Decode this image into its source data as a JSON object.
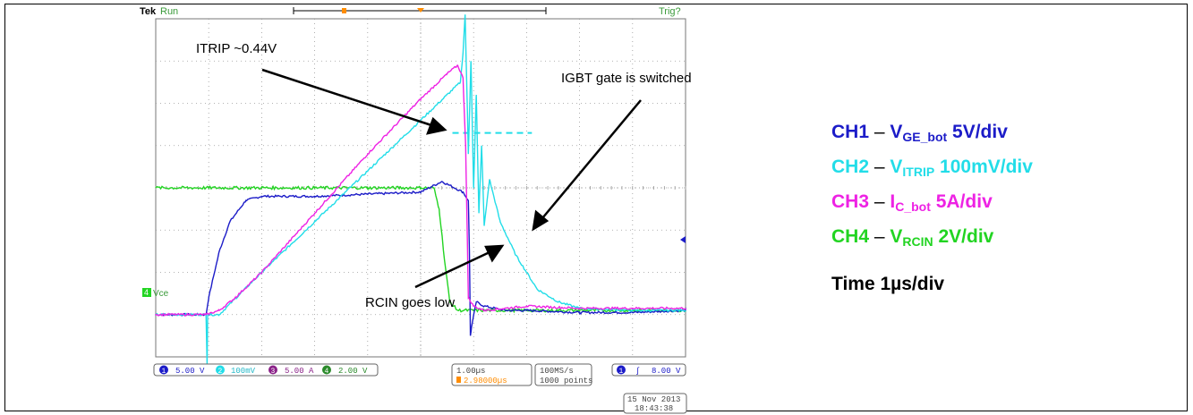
{
  "scope": {
    "brand": "Tek",
    "run_state": "Run",
    "trigger_state": "Trig?",
    "ch4_marker": "4",
    "ch4_ground_label": "Vce",
    "date": "15 Nov 2013",
    "time": "18:43:38",
    "status_bar": {
      "ch1_num": "1",
      "ch1_scale": "5.00 V",
      "ch2_num": "2",
      "ch2_scale": "100mV",
      "ch3_num": "3",
      "ch3_scale": "5.00 A",
      "ch4_num": "4",
      "ch4_scale": "2.00 V",
      "timebase": "1.00µs",
      "trigger_pos": "2.98000µs",
      "sample_rate": "100MS/s",
      "record_length": "1000 points",
      "trig_src": "1",
      "trig_slope": "∫",
      "trig_level": "8.00 V"
    }
  },
  "annotations": {
    "itrip": "ITRIP ~0.44V",
    "igbt": "IGBT gate is switched",
    "rcin": "RCIN goes low"
  },
  "legend": {
    "ch1": {
      "name": "CH1",
      "dash": "–",
      "sym": "V",
      "sub": "GE_bot",
      "scale": "5V/div"
    },
    "ch2": {
      "name": "CH2",
      "dash": "–",
      "sym": "V",
      "sub": "ITRIP",
      "scale": "100mV/div"
    },
    "ch3": {
      "name": "CH3",
      "dash": "–",
      "sym": "I",
      "sub": "C_bot",
      "scale": "5A/div"
    },
    "ch4": {
      "name": "CH4",
      "dash": "–",
      "sym": "V",
      "sub": "RCIN",
      "scale": "2V/div"
    }
  },
  "time_label": "Time 1µs/div",
  "colors": {
    "ch1": "#1c1cc8",
    "ch2": "#22dde8",
    "ch3": "#ee22e4",
    "ch4": "#22d422",
    "trigger_marker": "#ff8c00",
    "grid": "#9a9a9a"
  },
  "chart_data": {
    "type": "line",
    "x_unit": "div",
    "y_unit": "div",
    "xlim": [
      0,
      10
    ],
    "ylim": [
      -4,
      4
    ],
    "grid": true,
    "series": [
      {
        "name": "CH1",
        "x": [
          0,
          0.95,
          1.0,
          1.2,
          1.4,
          1.7,
          2.0,
          3.0,
          4.0,
          5.0,
          5.4,
          5.8,
          5.9,
          5.92,
          5.94,
          5.96,
          6.05,
          6.2,
          6.6,
          7.0,
          8.0,
          9.0,
          10.0
        ],
        "y": [
          -3.0,
          -3.0,
          -2.6,
          -1.5,
          -0.8,
          -0.3,
          -0.2,
          -0.2,
          -0.15,
          -0.1,
          0.15,
          -0.1,
          -0.3,
          -1.5,
          -3.5,
          -3.3,
          -2.7,
          -2.8,
          -2.9,
          -2.9,
          -2.95,
          -2.95,
          -2.9
        ]
      },
      {
        "name": "CH2",
        "x": [
          0,
          0.95,
          0.97,
          0.98,
          1.05,
          1.2,
          2.0,
          3.0,
          4.0,
          5.0,
          5.75,
          5.8,
          5.84,
          5.9,
          5.95,
          6.0,
          6.05,
          6.1,
          6.15,
          6.2,
          6.3,
          6.5,
          6.8,
          7.2,
          7.6,
          8.0,
          9.0,
          10.0
        ],
        "y": [
          -3.0,
          -3.0,
          -4.2,
          -3.0,
          -3.0,
          -3.0,
          -2.0,
          -0.8,
          0.4,
          1.6,
          2.5,
          3.2,
          4.1,
          0.8,
          3.0,
          0.0,
          2.2,
          -0.6,
          1.0,
          -0.9,
          0.2,
          -0.8,
          -1.6,
          -2.4,
          -2.7,
          -2.85,
          -2.9,
          -2.9
        ]
      },
      {
        "name": "CH3",
        "x": [
          0,
          0.95,
          1.2,
          1.5,
          2.0,
          3.0,
          4.0,
          5.0,
          5.5,
          5.7,
          5.8,
          5.85,
          5.9,
          6.0,
          6.2,
          7.0,
          8.0,
          9.0,
          10.0
        ],
        "y": [
          -3.0,
          -3.0,
          -2.9,
          -2.6,
          -2.0,
          -0.6,
          0.8,
          2.1,
          2.7,
          2.9,
          2.6,
          1.0,
          -2.6,
          -2.8,
          -2.9,
          -2.8,
          -2.85,
          -2.85,
          -2.85
        ]
      },
      {
        "name": "CH4",
        "x": [
          0,
          1.0,
          2.0,
          3.0,
          4.0,
          5.0,
          5.25,
          5.35,
          5.45,
          5.55,
          5.7,
          6.0,
          7.0,
          8.0,
          9.0,
          10.0
        ],
        "y": [
          0.0,
          0.0,
          0.0,
          0.0,
          0.0,
          0.0,
          0.0,
          -0.5,
          -1.7,
          -2.7,
          -2.9,
          -2.9,
          -2.9,
          -2.9,
          -2.9,
          -2.9
        ]
      }
    ],
    "itrip_threshold_div": 1.3
  }
}
